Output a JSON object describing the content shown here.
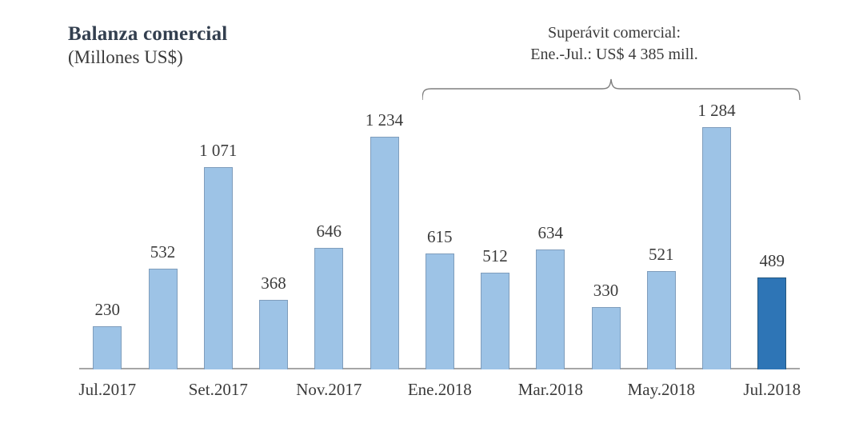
{
  "header": {
    "title": "Balanza comercial",
    "subtitle": "(Millones US$)"
  },
  "annotation": {
    "line1": "Superávit comercial:",
    "line2": "Ene.-Jul.: US$ 4 385 mill."
  },
  "chart_data": {
    "type": "bar",
    "title": "Balanza comercial",
    "unit_label": "Millones US$",
    "categories": [
      "Jul.2017",
      "",
      "Set.2017",
      "",
      "Nov.2017",
      "",
      "Ene.2018",
      "",
      "Mar.2018",
      "",
      "May.2018",
      "",
      "Jul.2018"
    ],
    "values": [
      230,
      532,
      1071,
      368,
      646,
      1234,
      615,
      512,
      634,
      330,
      521,
      1284,
      489
    ],
    "value_labels": [
      "230",
      "532",
      "1 071",
      "368",
      "646",
      "1 234",
      "615",
      "512",
      "634",
      "330",
      "521",
      "1 284",
      "489"
    ],
    "highlight_index": 12,
    "grid": false,
    "legend": false,
    "annotation_span_indices": [
      6,
      12
    ],
    "colors": {
      "bar_fill": "#9DC3E6",
      "bar_border": "#7F9DBC",
      "highlight_fill": "#2E75B6",
      "highlight_border": "#24577F",
      "axis_line": "#A6A6A6",
      "text": "#3B3B3B",
      "title_text": "#333F4F",
      "brace": "#7F7F7F"
    }
  }
}
